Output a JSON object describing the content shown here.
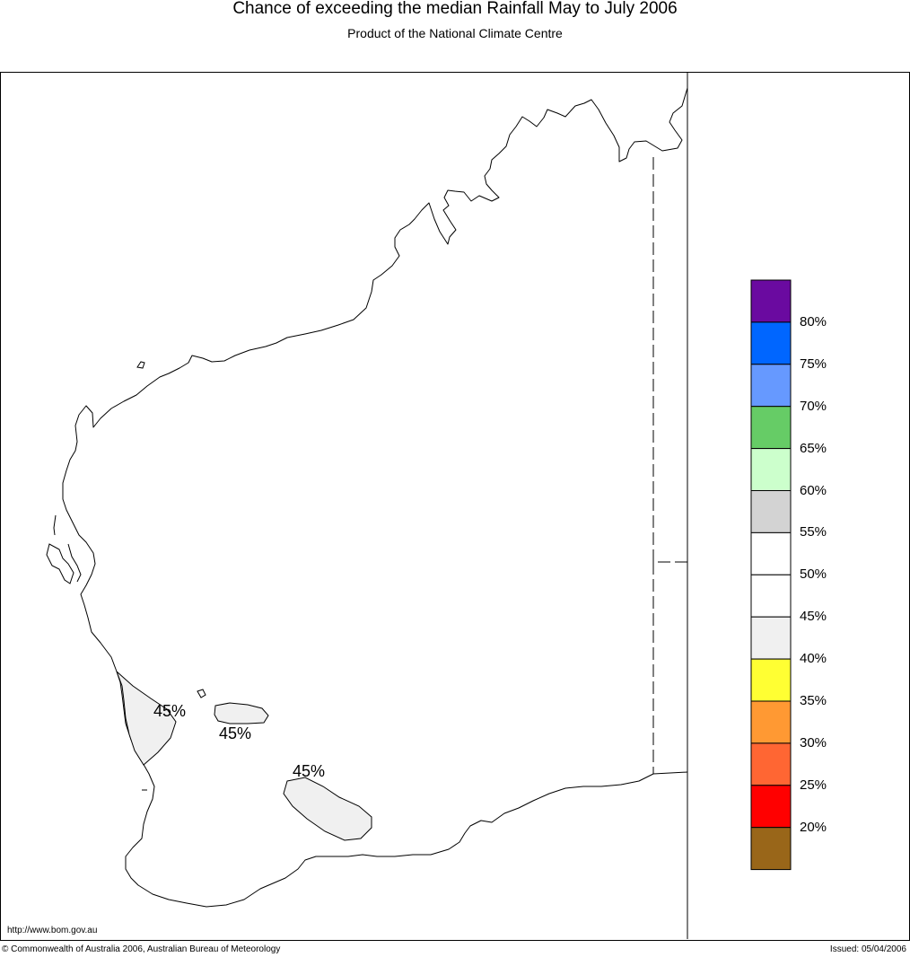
{
  "header": {
    "title": "Chance of exceeding the median Rainfall May to July 2006",
    "subtitle": "Product of the National Climate Centre"
  },
  "map": {
    "region": "Western Australia",
    "contour_labels": [
      "45%",
      "45%",
      "45%"
    ]
  },
  "legend": {
    "colors": [
      "#6a0aa0",
      "#0066ff",
      "#6699ff",
      "#66cc66",
      "#ccffcc",
      "#d3d3d3",
      "#ffffff",
      "#ffffff",
      "#f0f0f0",
      "#ffff33",
      "#ff9933",
      "#ff6633",
      "#ff0000",
      "#996619"
    ],
    "ticks": [
      "80%",
      "75%",
      "70%",
      "65%",
      "60%",
      "55%",
      "50%",
      "45%",
      "40%",
      "35%",
      "30%",
      "25%",
      "20%"
    ]
  },
  "footer": {
    "url": "http://www.bom.gov.au",
    "copyright": "© Commonwealth of Australia 2006, Australian Bureau of Meteorology",
    "issued": "Issued: 05/04/2006"
  }
}
